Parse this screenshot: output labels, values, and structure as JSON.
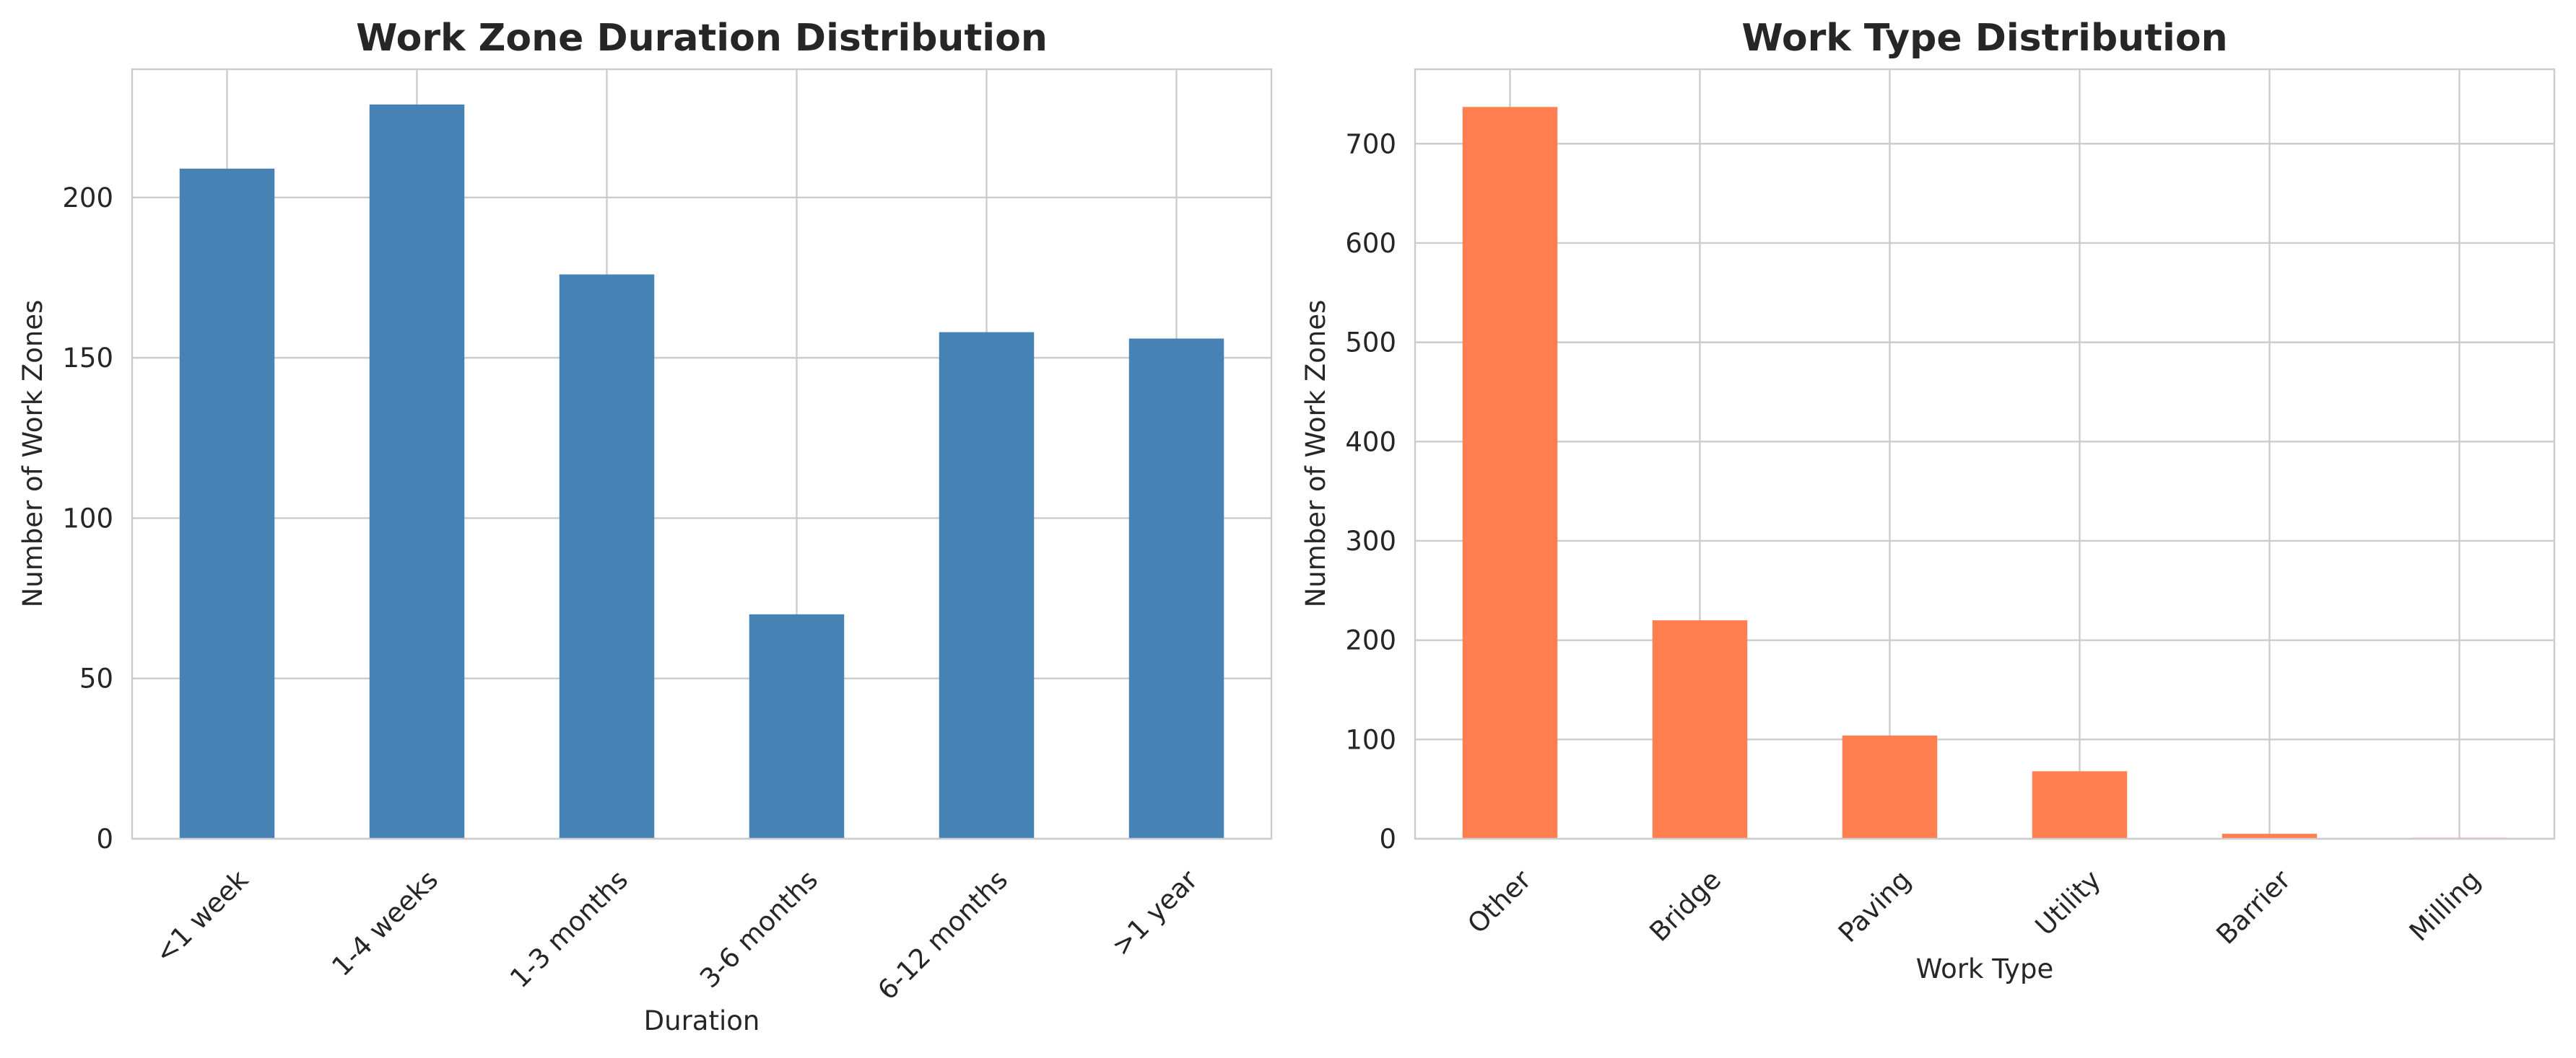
{
  "chart_data": [
    {
      "type": "bar",
      "title": "Work Zone Duration Distribution",
      "xlabel": "Duration",
      "ylabel": "Number of Work Zones",
      "categories": [
        "<1 week",
        "1-4 weeks",
        "1-3 months",
        "3-6 months",
        "6-12 months",
        ">1 year"
      ],
      "values": [
        209,
        229,
        176,
        70,
        158,
        156
      ],
      "ylim": [
        0,
        240
      ],
      "yticks": [
        0,
        50,
        100,
        150,
        200
      ],
      "color": "#4682b4",
      "grid": true,
      "legend": "none"
    },
    {
      "type": "bar",
      "title": "Work Type Distribution",
      "xlabel": "Work Type",
      "ylabel": "Number of Work Zones",
      "categories": [
        "Other",
        "Bridge",
        "Paving",
        "Utility",
        "Barrier",
        "Milling"
      ],
      "values": [
        737,
        220,
        104,
        68,
        5,
        1
      ],
      "ylim": [
        0,
        775
      ],
      "yticks": [
        0,
        100,
        200,
        300,
        400,
        500,
        600,
        700
      ],
      "color": "#ff7f50",
      "grid": true,
      "legend": "none"
    }
  ]
}
